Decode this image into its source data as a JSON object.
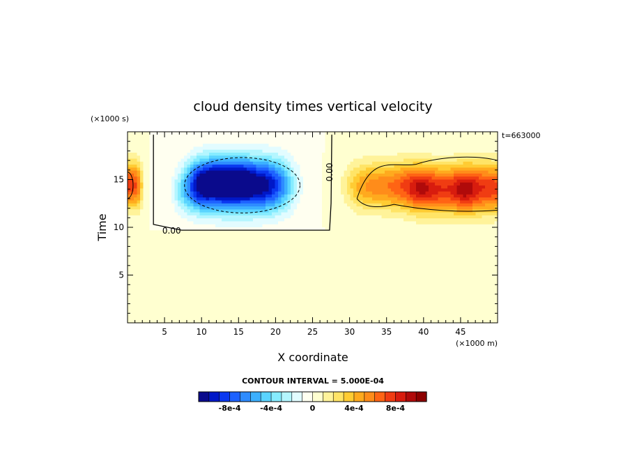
{
  "chart_data": {
    "type": "heatmap",
    "title": "cloud density times vertical velocity",
    "xlabel": "X coordinate",
    "ylabel": "Time",
    "x_unit": "(×1000 m)",
    "y_unit": "(×1000 s)",
    "time_stamp": "t=663000",
    "xlim": [
      0,
      50
    ],
    "ylim": [
      0,
      20
    ],
    "x_ticks": [
      5,
      10,
      15,
      20,
      25,
      30,
      35,
      40,
      45
    ],
    "y_ticks": [
      5,
      10,
      15
    ],
    "x_tick_labels": [
      "5",
      "10",
      "15",
      "20",
      "25",
      "30",
      "35",
      "40",
      "45"
    ],
    "y_tick_labels": [
      "5",
      "10",
      "15"
    ],
    "contour_interval_text": "CONTOUR INTERVAL = 5.000E-04",
    "contour_labels": [
      "0.00",
      "0.00"
    ],
    "features": [
      {
        "cx": 15,
        "cy": 14.4,
        "sx": 5.8,
        "sy": 2.6,
        "amp": -0.00115
      },
      {
        "cx": 12.5,
        "cy": 15.2,
        "sx": 3.5,
        "sy": 1.8,
        "amp": -0.00025
      },
      {
        "cx": 8.5,
        "cy": 13.5,
        "sx": 2.0,
        "sy": 1.8,
        "amp": -0.0002
      },
      {
        "cx": 48.5,
        "cy": 14.0,
        "sx": 3.2,
        "sy": 2.4,
        "amp": 0.00045
      },
      {
        "cx": 42.5,
        "cy": 13.8,
        "sx": 3.4,
        "sy": 2.3,
        "amp": 0.00045
      },
      {
        "cx": 35.0,
        "cy": 14.3,
        "sx": 4.5,
        "sy": 2.3,
        "amp": 0.00055
      },
      {
        "cx": 45,
        "cy": 14.2,
        "sx": 7.0,
        "sy": 2.4,
        "amp": 0.00035
      },
      {
        "cx": 0.4,
        "cy": 14.4,
        "sx": 1.3,
        "sy": 2.2,
        "amp": 0.00075
      }
    ],
    "zero_contour_x": 27.5,
    "zero_contour_floor_y": 9.7,
    "colorbar": {
      "levels": [
        -0.00115,
        -0.001,
        -0.0009,
        -0.0008,
        -0.0007,
        -0.0006,
        -0.0005,
        -0.0004,
        -0.0003,
        -0.0002,
        -0.0001,
        0,
        0.0001,
        0.0002,
        0.0003,
        0.0004,
        0.0005,
        0.0006,
        0.0007,
        0.0008,
        0.0009,
        0.001,
        0.00115
      ],
      "colors": [
        "#0a0a8c",
        "#0018c8",
        "#0a38f0",
        "#1e62ff",
        "#2e8cff",
        "#3cb0ff",
        "#5ad4ff",
        "#86ecff",
        "#b4f6ff",
        "#e2fcff",
        "#fffff0",
        "#ffffd0",
        "#fff39a",
        "#ffe466",
        "#ffcc33",
        "#ffaa1e",
        "#ff8c1a",
        "#ff6414",
        "#f03c12",
        "#d81c0e",
        "#b00a0a",
        "#8c0000"
      ],
      "tick_values": [
        -0.0008,
        -0.0004,
        0,
        0.0004,
        0.0008
      ],
      "tick_labels": [
        "-8e-4",
        "-4e-4",
        "0",
        "4e-4",
        "8e-4"
      ]
    }
  }
}
